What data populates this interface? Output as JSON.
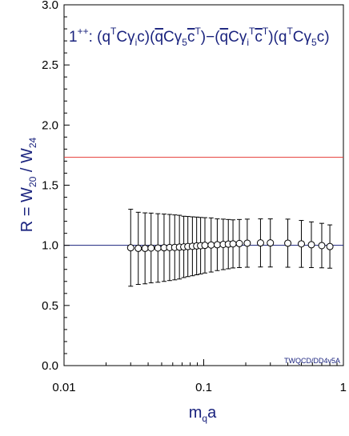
{
  "chart_data": {
    "type": "scatter",
    "title": {
      "prefix": "1",
      "prefix_sup": "++",
      "formula_plain": "1++: (qTCγic)(q̄Cγ5c̄T)−(q̄CγiTc̄T)(qTCγ5c)"
    },
    "xlabel": {
      "main": "m",
      "sub": "q",
      "tail": "a"
    },
    "ylabel": {
      "main": "R = W",
      "sub1": "20",
      "mid": " / W",
      "sub2": "24"
    },
    "x_scale": "log",
    "xlim": [
      0.01,
      1
    ],
    "ylim": [
      0.0,
      3.0
    ],
    "x_ticks": [
      {
        "value": 0.01,
        "label": "0.01"
      },
      {
        "value": 0.1,
        "label": "0.1"
      },
      {
        "value": 1,
        "label": "1"
      }
    ],
    "y_ticks": [
      {
        "value": 0.0,
        "label": "0.0"
      },
      {
        "value": 0.5,
        "label": "0.5"
      },
      {
        "value": 1.0,
        "label": "1.0"
      },
      {
        "value": 1.5,
        "label": "1.5"
      },
      {
        "value": 2.0,
        "label": "2.0"
      },
      {
        "value": 2.5,
        "label": "2.5"
      },
      {
        "value": 3.0,
        "label": "3.0"
      }
    ],
    "reference_lines": [
      {
        "orientation": "horizontal",
        "y": 1.732,
        "color": "#e53935"
      },
      {
        "orientation": "horizontal",
        "y": 1.0,
        "color": "#1a237e"
      }
    ],
    "series": [
      {
        "marker": "open-circle",
        "color": "#000000",
        "points": [
          {
            "x": 0.03,
            "y": 0.98,
            "err": 0.32
          },
          {
            "x": 0.034,
            "y": 0.975,
            "err": 0.3
          },
          {
            "x": 0.038,
            "y": 0.975,
            "err": 0.295
          },
          {
            "x": 0.042,
            "y": 0.978,
            "err": 0.29
          },
          {
            "x": 0.047,
            "y": 0.978,
            "err": 0.285
          },
          {
            "x": 0.052,
            "y": 0.98,
            "err": 0.28
          },
          {
            "x": 0.057,
            "y": 0.982,
            "err": 0.275
          },
          {
            "x": 0.062,
            "y": 0.983,
            "err": 0.27
          },
          {
            "x": 0.067,
            "y": 0.985,
            "err": 0.265
          },
          {
            "x": 0.072,
            "y": 0.987,
            "err": 0.255
          },
          {
            "x": 0.077,
            "y": 0.99,
            "err": 0.25
          },
          {
            "x": 0.083,
            "y": 0.992,
            "err": 0.245
          },
          {
            "x": 0.089,
            "y": 0.995,
            "err": 0.24
          },
          {
            "x": 0.095,
            "y": 0.997,
            "err": 0.235
          },
          {
            "x": 0.102,
            "y": 1.0,
            "err": 0.23
          },
          {
            "x": 0.113,
            "y": 1.003,
            "err": 0.225
          },
          {
            "x": 0.125,
            "y": 1.005,
            "err": 0.215
          },
          {
            "x": 0.138,
            "y": 1.008,
            "err": 0.21
          },
          {
            "x": 0.15,
            "y": 1.01,
            "err": 0.205
          },
          {
            "x": 0.162,
            "y": 1.012,
            "err": 0.2
          },
          {
            "x": 0.18,
            "y": 1.015,
            "err": 0.2
          },
          {
            "x": 0.205,
            "y": 1.018,
            "err": 0.2
          },
          {
            "x": 0.255,
            "y": 1.02,
            "err": 0.2
          },
          {
            "x": 0.3,
            "y": 1.02,
            "err": 0.2
          },
          {
            "x": 0.4,
            "y": 1.018,
            "err": 0.2
          },
          {
            "x": 0.5,
            "y": 1.012,
            "err": 0.195
          },
          {
            "x": 0.59,
            "y": 1.005,
            "err": 0.19
          },
          {
            "x": 0.7,
            "y": 0.998,
            "err": 0.185
          },
          {
            "x": 0.8,
            "y": 0.99,
            "err": 0.18
          }
        ]
      }
    ],
    "watermark": "TWQCD/DD4v5A",
    "colors": {
      "title": "#1a237e",
      "axis_title": "#1a237e",
      "axes": "#000000"
    }
  }
}
